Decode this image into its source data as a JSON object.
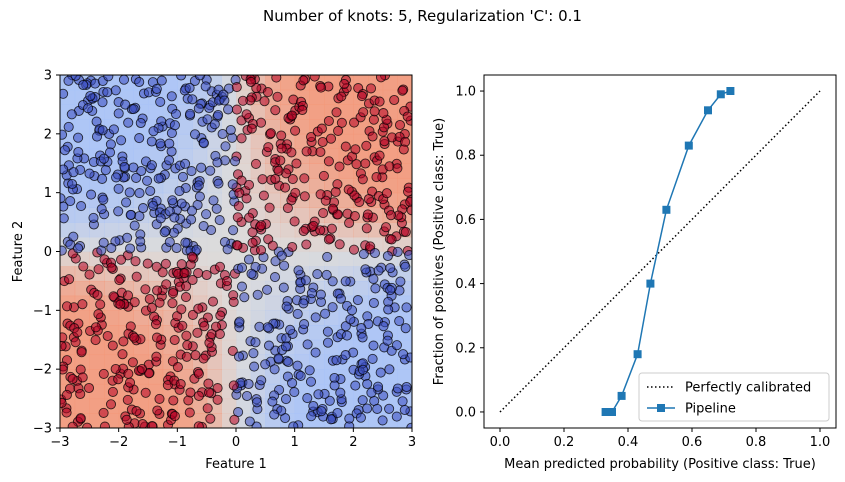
{
  "figure": {
    "title": "Number of knots: 5, Regularization 'C': 0.1"
  },
  "colors": {
    "class_true": "#b40426",
    "class_false": "#3b4cc0",
    "region_true": "#f4987a",
    "region_false": "#a9c3f8",
    "region_mid": "#dddcdc",
    "pipeline_line": "#1f77b4",
    "reference_line": "#000000"
  },
  "chart_data": [
    {
      "type": "scatter",
      "title": "",
      "xlabel": "Feature 1",
      "ylabel": "Feature 2",
      "xlim": [
        -3,
        3
      ],
      "ylim": [
        -3,
        3
      ],
      "xticks": [
        "−3",
        "−2",
        "−1",
        "0",
        "1",
        "2",
        "3"
      ],
      "yticks": [
        "−3",
        "−2",
        "−1",
        "0",
        "1",
        "2",
        "3"
      ],
      "background": "decision function heatmap (coolwarm), red where x·y > 0, blue where x·y < 0",
      "point_rule": "class True when Feature 1 × Feature 2 > 0 (red), otherwise class False (blue)",
      "n_points": 1000,
      "series": [
        {
          "name": "",
          "color": "#b40426"
        },
        {
          "name": "",
          "color": "#3b4cc0"
        }
      ]
    },
    {
      "type": "line",
      "title": "",
      "xlabel": "Mean predicted probability (Positive class: True)",
      "ylabel": "Fraction of positives (Positive class: True)",
      "xlim": [
        -0.05,
        1.05
      ],
      "ylim": [
        -0.05,
        1.05
      ],
      "xticks": [
        "0.0",
        "0.2",
        "0.4",
        "0.6",
        "0.8",
        "1.0"
      ],
      "yticks": [
        "0.0",
        "0.2",
        "0.4",
        "0.6",
        "0.8",
        "1.0"
      ],
      "legend_position": "lower-right",
      "series": [
        {
          "name": "Perfectly calibrated",
          "style": "dotted",
          "color": "#000000",
          "x": [
            0,
            1
          ],
          "y": [
            0,
            1
          ]
        },
        {
          "name": "Pipeline",
          "style": "solid",
          "marker": "square",
          "color": "#1f77b4",
          "x": [
            0.33,
            0.35,
            0.38,
            0.43,
            0.47,
            0.52,
            0.59,
            0.65,
            0.69,
            0.72
          ],
          "y": [
            0.0,
            0.0,
            0.05,
            0.18,
            0.4,
            0.63,
            0.83,
            0.94,
            0.99,
            1.0
          ]
        }
      ]
    }
  ]
}
